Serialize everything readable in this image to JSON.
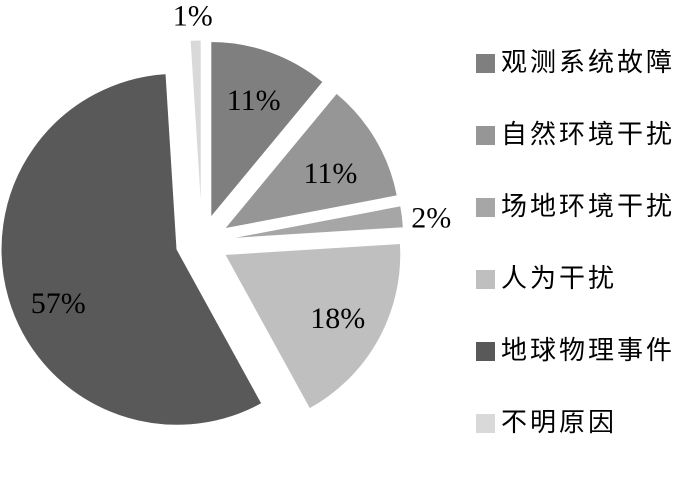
{
  "chart_data": {
    "type": "pie",
    "title": "",
    "legend_position": "right",
    "direction": "clockwise",
    "start_angle_deg": 0,
    "exploded": true,
    "background_color": "#ffffff",
    "data_label_color": "#000000",
    "items": [
      {
        "label": "观测系统故障",
        "value": 11,
        "data_label": "11%",
        "color": "#7f7f7f"
      },
      {
        "label": "自然环境干扰",
        "value": 11,
        "data_label": "11%",
        "color": "#969696"
      },
      {
        "label": "场地环境干扰",
        "value": 2,
        "data_label": "2%",
        "color": "#a6a6a6"
      },
      {
        "label": "人为干扰",
        "value": 18,
        "data_label": "18%",
        "color": "#bfbfbf"
      },
      {
        "label": "地球物理事件",
        "value": 57,
        "data_label": "57%",
        "color": "#595959"
      },
      {
        "label": "不明原因",
        "value": 1,
        "data_label": "1%",
        "color": "#d9d9d9"
      }
    ]
  }
}
